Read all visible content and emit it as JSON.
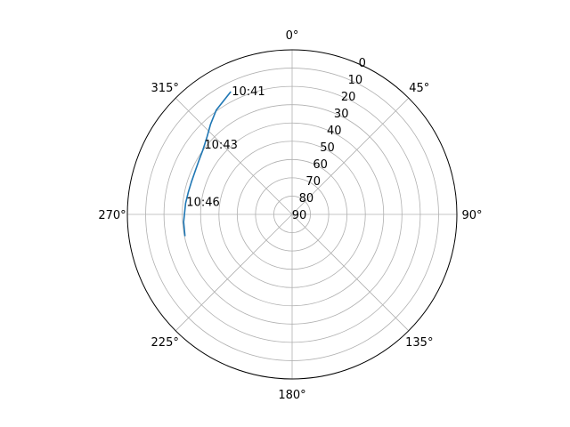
{
  "chart_data": {
    "type": "line",
    "projection": "polar",
    "theta_direction": "clockwise",
    "theta_zero_location": "top",
    "theta_ticks": [
      0,
      45,
      90,
      135,
      180,
      225,
      270,
      315
    ],
    "theta_tick_labels": [
      "0°",
      "45°",
      "90°",
      "135°",
      "180°",
      "225°",
      "270°",
      "315°"
    ],
    "r_axis_inverted": true,
    "r_range": [
      0,
      90
    ],
    "r_ticks": [
      0,
      10,
      20,
      30,
      40,
      50,
      60,
      70,
      80,
      90
    ],
    "r_tick_labels": [
      "0",
      "10",
      "20",
      "30",
      "40",
      "50",
      "60",
      "70",
      "80",
      "90"
    ],
    "grid": true,
    "series": [
      {
        "color": "#1f77b4",
        "points": [
          {
            "theta": 333.5,
            "r": 15.0
          },
          {
            "theta": 324.0,
            "r": 19.5
          },
          {
            "theta": 318.0,
            "r": 23.5
          },
          {
            "theta": 312.0,
            "r": 27.3
          },
          {
            "theta": 306.0,
            "r": 29.8
          },
          {
            "theta": 300.0,
            "r": 31.2
          },
          {
            "theta": 294.0,
            "r": 32.0
          },
          {
            "theta": 288.0,
            "r": 32.2
          },
          {
            "theta": 282.0,
            "r": 32.0
          },
          {
            "theta": 276.0,
            "r": 31.5
          },
          {
            "theta": 266.0,
            "r": 30.6
          },
          {
            "theta": 258.5,
            "r": 30.3
          }
        ]
      }
    ],
    "annotations": [
      {
        "text": "10:41",
        "theta": 333.5,
        "r": 15.0
      },
      {
        "text": "10:43",
        "theta": 308.0,
        "r": 28.5
      },
      {
        "text": "10:46",
        "theta": 276.5,
        "r": 31.4
      }
    ]
  }
}
